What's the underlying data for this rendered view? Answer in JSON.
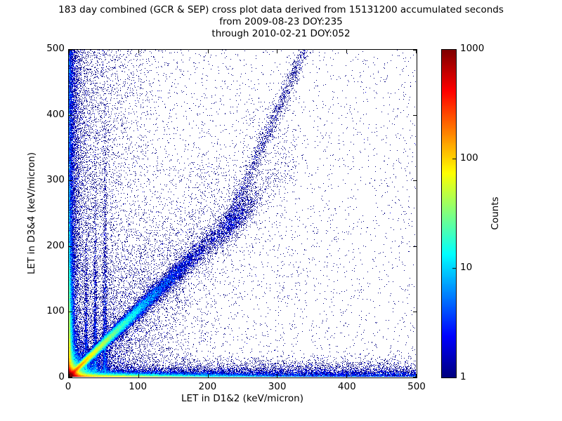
{
  "chart_data": {
    "type": "heatmap",
    "title_lines": [
      "183 day combined (GCR & SEP) cross plot data derived from 15131200 accumulated seconds",
      "from 2009-08-23 DOY:235",
      "through 2010-02-21 DOY:052"
    ],
    "xlabel": "LET in D1&2 (keV/micron)",
    "ylabel": "LET in D3&4 (keV/micron)",
    "xlim": [
      0,
      500
    ],
    "ylim": [
      0,
      500
    ],
    "xticks": [
      0,
      100,
      200,
      300,
      400,
      500
    ],
    "yticks": [
      0,
      100,
      200,
      300,
      400,
      500
    ],
    "grid": false,
    "duration_days": 183,
    "accumulated_seconds": 15131200,
    "start_date": "2009-08-23",
    "start_doy": 235,
    "end_date": "2010-02-21",
    "end_doy": 52,
    "colorbar": {
      "label": "Counts",
      "scale": "log",
      "min": 1,
      "max": 1000,
      "ticks": [
        1,
        10,
        100,
        1000
      ],
      "colormap": "jet"
    },
    "render": {
      "seed": 1337,
      "log_vmax": 3
    },
    "features": [
      {
        "name": "origin-hotspot",
        "desc": "very dense core at origin, counts ~1000 (dark red)",
        "n": 70000,
        "x": {
          "d": "exp",
          "s": 4
        },
        "y": {
          "d": "exp",
          "s": 4
        }
      },
      {
        "name": "origin-glow",
        "desc": "orange/yellow/green halo around origin core",
        "n": 22000,
        "x": {
          "d": "exp",
          "s": 11
        },
        "y": {
          "d": "exp",
          "s": 11
        }
      },
      {
        "name": "bottom-ridge",
        "desc": "bright ridge along y~0, red near 0 fading to cyan by x~250",
        "n": 30000,
        "x": {
          "d": "exp",
          "s": 80,
          "max": 500
        },
        "y": {
          "d": "exp",
          "s": 2
        }
      },
      {
        "name": "bottom-diffuse",
        "desc": "blue speckle band along bottom out to x=500",
        "n": 11000,
        "x": {
          "d": "uniform",
          "min": 0,
          "max": 500
        },
        "y": {
          "d": "exp",
          "s": 7
        }
      },
      {
        "name": "left-ridge",
        "desc": "bright ridge along x~0, yellow/green low, decaying with y",
        "n": 22000,
        "x": {
          "d": "exp",
          "s": 2
        },
        "y": {
          "d": "exp",
          "s": 70,
          "max": 500
        }
      },
      {
        "name": "left-diffuse",
        "desc": "dense blue column hugging left edge over full height",
        "n": 9000,
        "x": {
          "d": "exp",
          "s": 5
        },
        "y": {
          "d": "uniform",
          "min": 0,
          "max": 500
        }
      },
      {
        "name": "left-speckle",
        "desc": "sparse speckle over left quarter at all heights",
        "n": 7000,
        "x": {
          "d": "exp",
          "s": 45,
          "max": 500
        },
        "y": {
          "d": "uniform",
          "min": 0,
          "max": 500
        }
      },
      {
        "name": "proton-diagonal",
        "desc": "main y~x band, yellow-orange core to ~(40,40), cyan to ~(70,70), blue beyond",
        "n": 60000,
        "x": {
          "d": "exp",
          "s": 50,
          "max": 330
        },
        "y": {
          "d": "line",
          "slope": 1.02,
          "intercept": 0,
          "sigma": 2,
          "grow": 0.045
        }
      },
      {
        "name": "fan-below-diagonal",
        "desc": "diffuse fill between diagonal band and bottom axis",
        "n": 3000,
        "x": {
          "d": "exp",
          "s": 90,
          "max": 500
        },
        "y": {
          "d": "fan",
          "slope": 1.0
        }
      },
      {
        "name": "diagonal-halo",
        "desc": "broad diffuse scatter around/above the diagonal band",
        "n": 5000,
        "x": {
          "d": "exp",
          "s": 120,
          "max": 330
        },
        "y": {
          "d": "line",
          "slope": 1.15,
          "intercept": 5,
          "sigma": 55
        }
      },
      {
        "name": "iron-blob",
        "desc": "dense blue cluster on the diagonal near (237,235)",
        "n": 1100,
        "x": {
          "d": "gauss",
          "mean": 237,
          "sigma": 16
        },
        "y": {
          "d": "line",
          "slope": 1.0,
          "intercept": 0,
          "sigma": 13
        }
      },
      {
        "name": "upper-branch",
        "desc": "steep sparse band rising from blob to top edge near x~345",
        "n": 1700,
        "x": {
          "d": "uniform",
          "min": 228,
          "max": 352
        },
        "y": {
          "d": "line",
          "slope": 2.4,
          "intercept": -315,
          "sigma": 13
        }
      },
      {
        "name": "streak-x25",
        "desc": "faint vertical streak near x=25 up to y~270",
        "n": 900,
        "x": {
          "d": "gauss",
          "mean": 25,
          "sigma": 1.3
        },
        "y": {
          "d": "exp",
          "s": 70,
          "min": 8,
          "max": 270
        }
      },
      {
        "name": "streak-x38",
        "desc": "vertical streak near x=38 up to y~340",
        "n": 1300,
        "x": {
          "d": "gauss",
          "mean": 38,
          "sigma": 1.4
        },
        "y": {
          "d": "exp",
          "s": 90,
          "min": 8,
          "max": 340
        }
      },
      {
        "name": "streak-x52",
        "desc": "vertical streak near x=52 up to y~430",
        "n": 1700,
        "x": {
          "d": "gauss",
          "mean": 52,
          "sigma": 1.6
        },
        "y": {
          "d": "exp",
          "s": 115,
          "min": 8,
          "max": 430
        }
      },
      {
        "name": "background",
        "desc": "sparse single-count dots over whole plane",
        "n": 3200,
        "x": {
          "d": "uniform",
          "min": 0,
          "max": 500
        },
        "y": {
          "d": "uniform",
          "min": 0,
          "max": 500
        }
      }
    ]
  }
}
